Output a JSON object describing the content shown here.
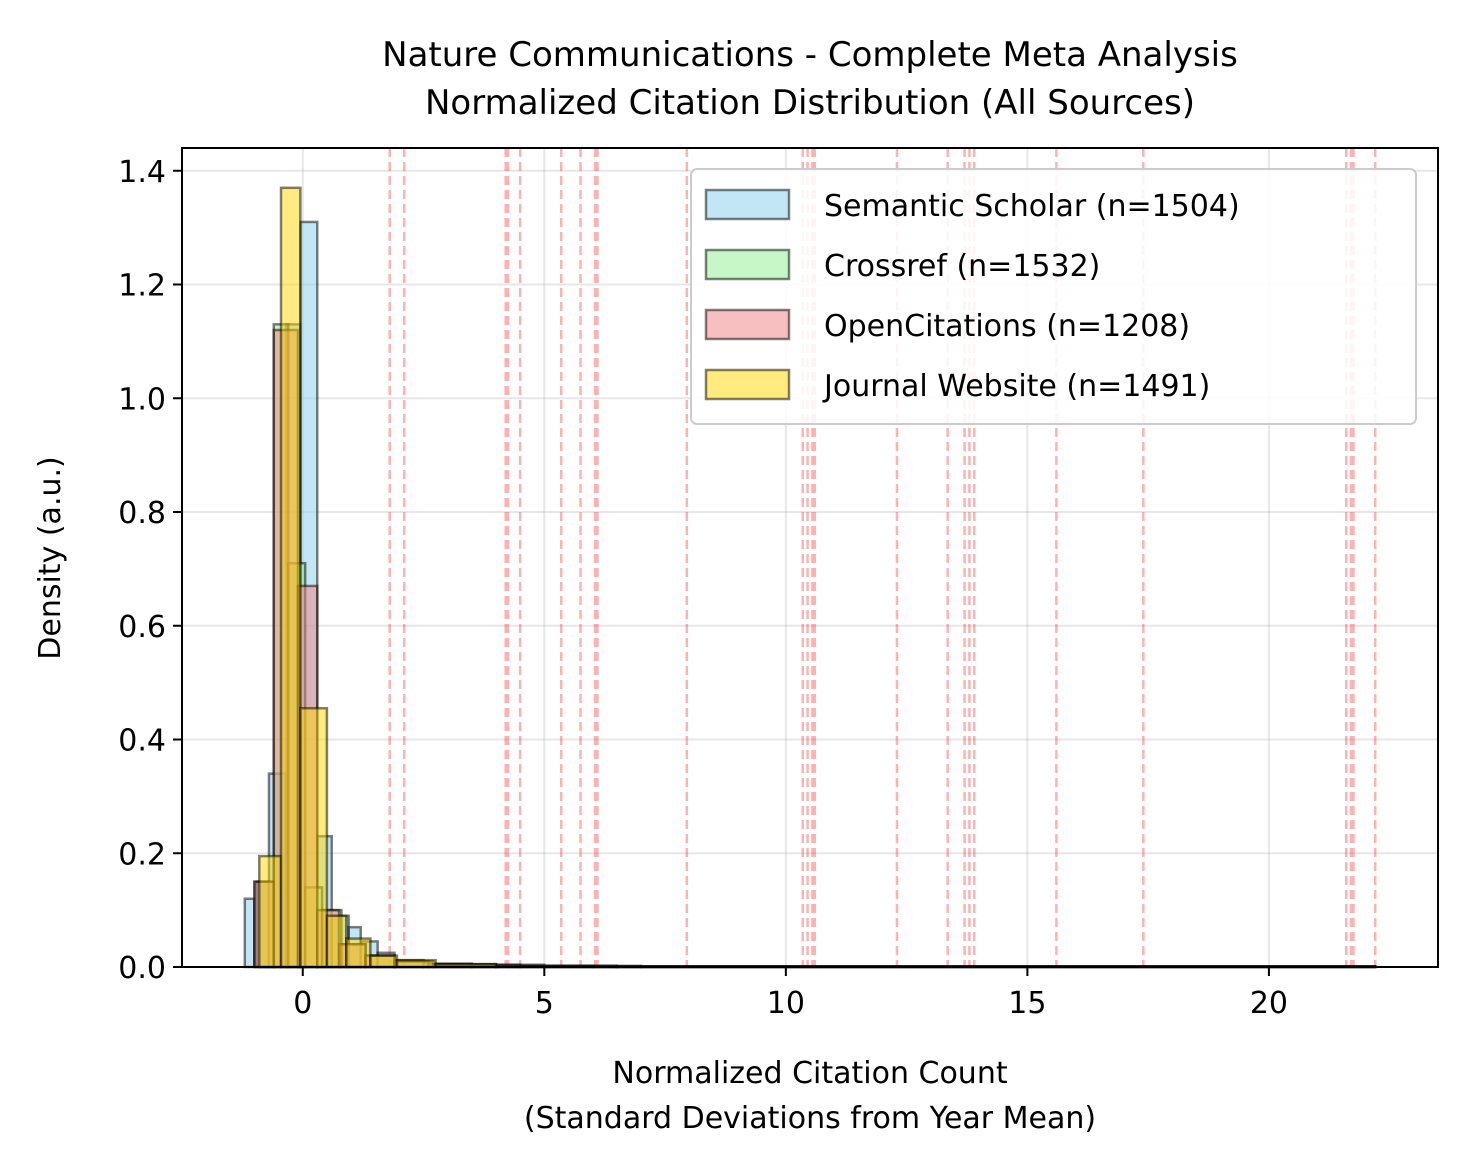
{
  "chart_data": {
    "type": "histogram",
    "title_line1": "Nature Communications - Complete Meta Analysis",
    "title_line2": "Normalized Citation Distribution (All Sources)",
    "xlabel_line1": "Normalized Citation Count",
    "xlabel_line2": "(Standard Deviations from Year Mean)",
    "ylabel": "Density (a.u.)",
    "xlim": [
      -2.5,
      23.5
    ],
    "ylim": [
      0,
      1.44
    ],
    "xticks": [
      0,
      5,
      10,
      15,
      20
    ],
    "yticks": [
      0.0,
      0.2,
      0.4,
      0.6,
      0.8,
      1.0,
      1.2,
      1.4
    ],
    "grid": true,
    "legend_position": "top-right",
    "outlier_lines": [
      1.8,
      2.1,
      4.2,
      4.25,
      4.5,
      5.35,
      5.75,
      6.05,
      6.1,
      7.95,
      10.35,
      10.45,
      10.55,
      10.6,
      12.3,
      13.35,
      13.7,
      13.8,
      13.9,
      15.6,
      17.4,
      21.6,
      21.7,
      21.75,
      22.2
    ],
    "series": [
      {
        "name": "Semantic Scholar (n=1504)",
        "color": "#87ceeb",
        "bins": [
          [
            -1.2,
            -1.0,
            0.12
          ],
          [
            -1.0,
            -0.7,
            0.15
          ],
          [
            -0.7,
            -0.35,
            0.34
          ],
          [
            -0.35,
            -0.05,
            1.13
          ],
          [
            -0.05,
            0.3,
            1.31
          ],
          [
            0.3,
            0.6,
            0.23
          ],
          [
            0.6,
            0.95,
            0.09
          ],
          [
            0.95,
            1.2,
            0.07
          ],
          [
            1.2,
            1.55,
            0.045
          ],
          [
            1.55,
            1.9,
            0.025
          ],
          [
            1.9,
            2.5,
            0.012
          ],
          [
            2.5,
            3.5,
            0.006
          ],
          [
            3.5,
            5.0,
            0.004
          ],
          [
            5.0,
            6.5,
            0.002
          ],
          [
            6.5,
            22.2,
            0.001
          ]
        ]
      },
      {
        "name": "Crossref (n=1532)",
        "color": "#90ee90",
        "bins": [
          [
            -0.95,
            -0.6,
            0.15
          ],
          [
            -0.6,
            -0.3,
            1.13
          ],
          [
            -0.3,
            0.05,
            0.71
          ],
          [
            0.05,
            0.4,
            0.14
          ],
          [
            0.4,
            0.8,
            0.1
          ],
          [
            0.8,
            1.3,
            0.04
          ],
          [
            1.3,
            1.9,
            0.02
          ],
          [
            1.9,
            2.6,
            0.01
          ],
          [
            2.6,
            4.0,
            0.005
          ],
          [
            4.0,
            6.0,
            0.002
          ],
          [
            6.0,
            22.2,
            0.001
          ]
        ]
      },
      {
        "name": "OpenCitations (n=1208)",
        "color": "#f08080",
        "bins": [
          [
            -1.0,
            -0.6,
            0.15
          ],
          [
            -0.6,
            -0.1,
            1.12
          ],
          [
            -0.1,
            0.3,
            0.67
          ],
          [
            0.3,
            0.75,
            0.1
          ],
          [
            0.75,
            1.3,
            0.04
          ],
          [
            1.3,
            1.9,
            0.02
          ],
          [
            1.9,
            2.7,
            0.01
          ],
          [
            2.7,
            4.5,
            0.004
          ],
          [
            4.5,
            7.0,
            0.002
          ],
          [
            7.0,
            22.2,
            0.001
          ]
        ]
      },
      {
        "name": "Journal Website (n=1491)",
        "color": "#ffd700",
        "bins": [
          [
            -0.9,
            -0.45,
            0.195
          ],
          [
            -0.45,
            -0.05,
            1.37
          ],
          [
            -0.05,
            0.5,
            0.455
          ],
          [
            0.5,
            0.9,
            0.09
          ],
          [
            0.9,
            1.4,
            0.05
          ],
          [
            1.4,
            1.95,
            0.02
          ],
          [
            1.95,
            2.75,
            0.012
          ],
          [
            2.75,
            4.0,
            0.005
          ],
          [
            4.0,
            6.5,
            0.002
          ],
          [
            6.5,
            22.2,
            0.001
          ]
        ]
      }
    ]
  }
}
